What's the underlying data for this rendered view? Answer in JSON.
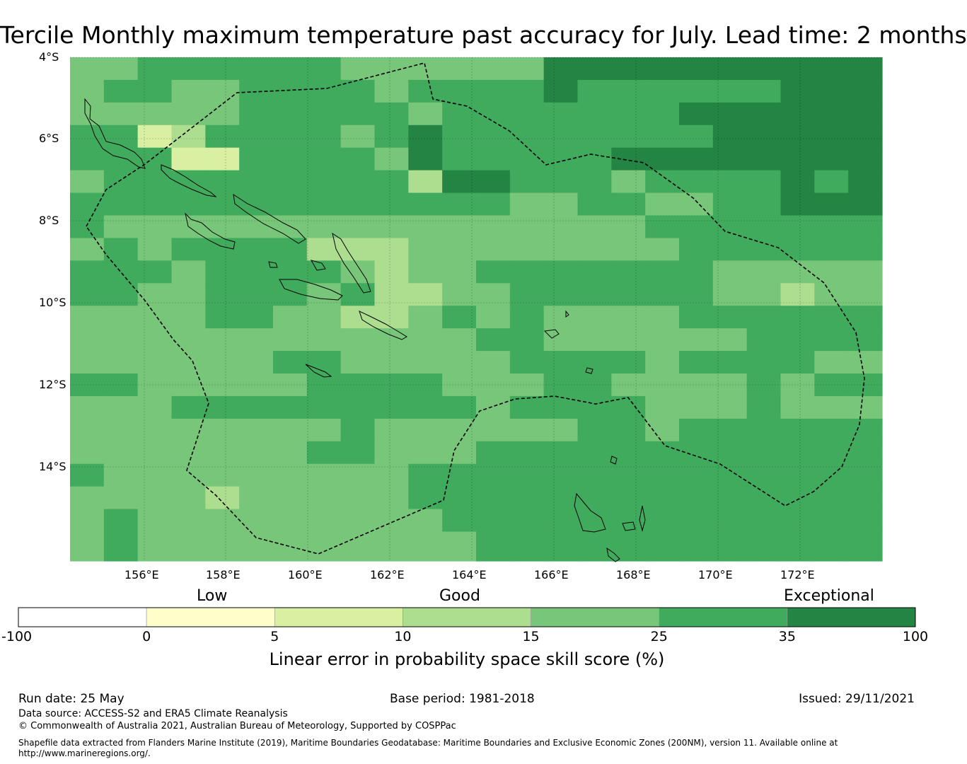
{
  "title": "Tercile Monthly maximum temperature past accuracy for July. Lead time: 2 months",
  "map": {
    "lat_labels": [
      "4°S",
      "6°S",
      "8°S",
      "10°S",
      "12°S",
      "14°S"
    ],
    "lon_labels": [
      "156°E",
      "158°E",
      "160°E",
      "162°E",
      "164°E",
      "166°E",
      "168°E",
      "170°E",
      "172°E"
    ]
  },
  "colorbar": {
    "category_labels": [
      "Low",
      "Good",
      "Exceptional"
    ],
    "ticks": [
      "-100",
      "0",
      "5",
      "10",
      "15",
      "25",
      "35",
      "100"
    ],
    "colors": [
      "#ffffff",
      "#ffffcc",
      "#d9f0a3",
      "#addd8e",
      "#78c679",
      "#41ab5d",
      "#238443"
    ],
    "title": "Linear error in probability space skill score (%)"
  },
  "footer": {
    "run_date": "Run date: 25 May",
    "base_period": "Base period: 1981-2018",
    "issued": "Issued: 29/11/2021",
    "data_source": "Data source: ACCESS-S2 and ERA5 Climate Reanalysis",
    "copyright": "© Commonwealth of Australia 2021, Australian Bureau of Meteorology, Supported by COSPPac",
    "shapefile_1": "Shapefile data extracted from Flanders Marine Institute (2019), Maritime Boundaries Geodatabase: Maritime Boundaries and Exclusive Economic Zones (200NM), version 11. Available online at",
    "shapefile_2": "http://www.marineregions.org/."
  }
}
